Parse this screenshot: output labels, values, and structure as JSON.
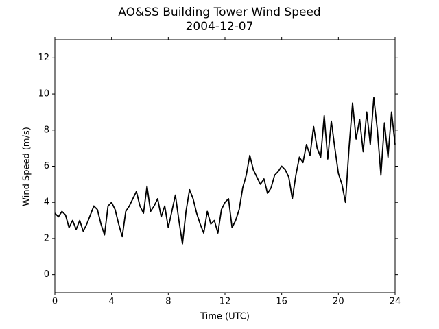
{
  "chart_data": {
    "type": "line",
    "title": "AO&SS Building Tower Wind Speed",
    "subtitle": "2004-12-07",
    "x_label": "Time (UTC)",
    "y_label": "Wind Speed (m/s)",
    "xlim": [
      0,
      24
    ],
    "xticks": [
      0,
      4,
      8,
      12,
      16,
      20,
      24
    ],
    "ylim": [
      -1,
      13
    ],
    "yticks": [
      0,
      2,
      4,
      6,
      8,
      10,
      12
    ],
    "grid": false,
    "series": [
      {
        "name": "Wind Speed",
        "color": "#000000",
        "x": [
          0,
          0.25,
          0.5,
          0.75,
          1,
          1.25,
          1.5,
          1.75,
          2,
          2.25,
          2.5,
          2.75,
          3,
          3.25,
          3.5,
          3.75,
          4,
          4.25,
          4.5,
          4.75,
          5,
          5.25,
          5.5,
          5.75,
          6,
          6.25,
          6.5,
          6.75,
          7,
          7.25,
          7.5,
          7.75,
          8,
          8.25,
          8.5,
          8.75,
          9,
          9.25,
          9.5,
          9.75,
          10,
          10.25,
          10.5,
          10.75,
          11,
          11.25,
          11.5,
          11.75,
          12,
          12.25,
          12.5,
          12.75,
          13,
          13.25,
          13.5,
          13.75,
          14,
          14.25,
          14.5,
          14.75,
          15,
          15.25,
          15.5,
          15.75,
          16,
          16.25,
          16.5,
          16.75,
          17,
          17.25,
          17.5,
          17.75,
          18,
          18.25,
          18.5,
          18.75,
          19,
          19.25,
          19.5,
          19.75,
          20,
          20.25,
          20.5,
          20.75,
          21,
          21.25,
          21.5,
          21.75,
          22,
          22.25,
          22.5,
          22.75,
          23,
          23.25,
          23.5,
          23.75,
          24
        ],
        "values": [
          3.4,
          3.2,
          3.5,
          3.3,
          2.6,
          3.0,
          2.5,
          3.0,
          2.4,
          2.8,
          3.3,
          3.8,
          3.6,
          2.8,
          2.2,
          3.8,
          4.0,
          3.6,
          2.8,
          2.1,
          3.5,
          3.8,
          4.2,
          4.6,
          3.8,
          3.4,
          4.9,
          3.5,
          3.8,
          4.2,
          3.2,
          3.8,
          2.6,
          3.5,
          4.4,
          3.0,
          1.7,
          3.5,
          4.7,
          4.2,
          3.4,
          2.8,
          2.3,
          3.5,
          2.8,
          3.0,
          2.3,
          3.6,
          4.0,
          4.2,
          2.6,
          3.0,
          3.6,
          4.8,
          5.5,
          6.6,
          5.8,
          5.4,
          5.0,
          5.3,
          4.5,
          4.8,
          5.5,
          5.7,
          6.0,
          5.8,
          5.4,
          4.2,
          5.5,
          6.5,
          6.2,
          7.2,
          6.6,
          8.2,
          7.0,
          6.5,
          8.8,
          6.4,
          8.5,
          7.0,
          5.6,
          5.0,
          4.0,
          7.0,
          9.5,
          7.5,
          8.6,
          6.8,
          9.0,
          7.2,
          9.8,
          8.0,
          5.5,
          8.4,
          6.5,
          9.0,
          7.2
        ]
      }
    ]
  }
}
